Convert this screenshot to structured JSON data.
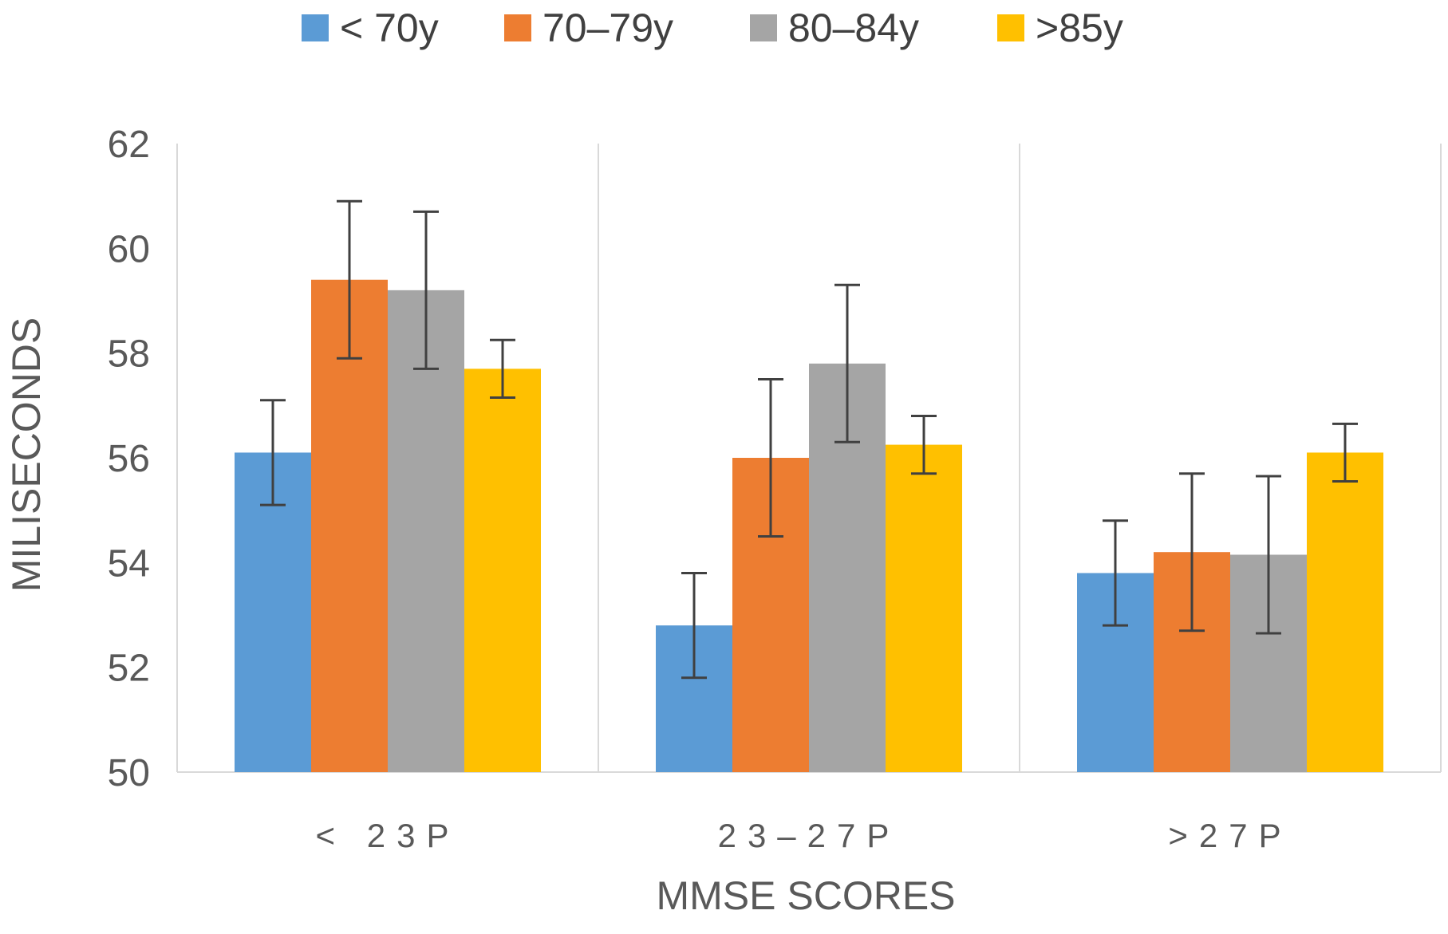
{
  "chart_data": {
    "type": "bar",
    "title": "",
    "xlabel": "MMSE SCORES",
    "ylabel": "MILISECONDS",
    "ylim": [
      50,
      62
    ],
    "yticks": [
      50,
      52,
      54,
      56,
      58,
      60,
      62
    ],
    "categories": [
      "< 23P",
      "23–27P",
      ">27P"
    ],
    "series": [
      {
        "name": "< 70y",
        "color": "#5B9BD5",
        "values": [
          56.1,
          52.8,
          53.8
        ],
        "errors": [
          1.0,
          1.0,
          1.0
        ]
      },
      {
        "name": "70–79y",
        "color": "#ED7D31",
        "values": [
          59.4,
          56.0,
          54.2
        ],
        "errors": [
          1.5,
          1.5,
          1.5
        ]
      },
      {
        "name": "80–84y",
        "color": "#A5A5A5",
        "values": [
          59.2,
          57.8,
          54.15
        ],
        "errors": [
          1.5,
          1.5,
          1.5
        ]
      },
      {
        "name": ">85y",
        "color": "#FFC000",
        "values": [
          57.7,
          56.25,
          56.1
        ],
        "errors": [
          0.55,
          0.55,
          0.55
        ]
      }
    ],
    "grid": false,
    "legend_position": "top"
  }
}
